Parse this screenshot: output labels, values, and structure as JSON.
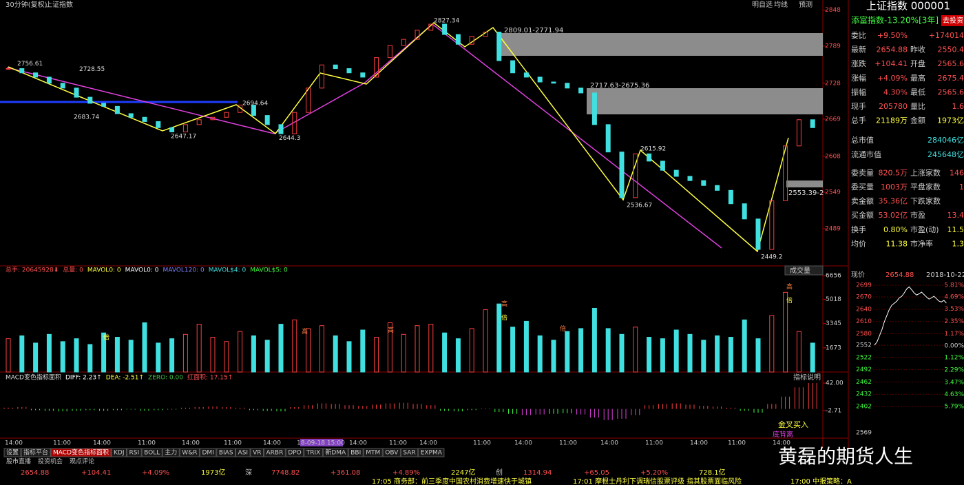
{
  "toolbar": {
    "period": "30分钟(复权)",
    "name": "上证指数",
    "buttons": [
      "明自选",
      "均线",
      "预测"
    ]
  },
  "price_chart": {
    "type": "candlestick",
    "ylim": [
      2429,
      2859
    ],
    "yticks": [
      2848,
      2789,
      2728,
      2669,
      2608,
      2549,
      2489
    ],
    "closes": [
      2752,
      2745,
      2738,
      2728,
      2720,
      2705,
      2695,
      2690,
      2678,
      2672,
      2665,
      2655,
      2648,
      2660,
      2668,
      2672,
      2680,
      2692,
      2675,
      2660,
      2645,
      2680,
      2720,
      2758,
      2752,
      2745,
      2738,
      2770,
      2790,
      2800,
      2815,
      2825,
      2808,
      2792,
      2805,
      2812,
      2765,
      2745,
      2738,
      2730,
      2728,
      2720,
      2712,
      2660,
      2615,
      2540,
      2612,
      2600,
      2585,
      2575,
      2568,
      2560,
      2552,
      2530,
      2505,
      2455,
      2535,
      2625,
      2668,
      2655
    ],
    "annotations": [
      2756.61,
      2728.55,
      2683.74,
      2647.17,
      2694.64,
      2644.3,
      2827.34,
      2615.92,
      2536.67,
      2449.2
    ],
    "zones": [
      "2809.01-2771.94",
      "2717.63-2675.36",
      "2553.39-2"
    ]
  },
  "volume_chart": {
    "type": "bar",
    "button": "成交量",
    "legend": [
      "总手: 20645928⬇",
      "总量: 0",
      "MAVOL0: 0",
      "MAVOL0: 0",
      "MAVOL120: 0",
      "MAVOL$4: 0",
      "MAVOL$5: 0"
    ],
    "ylim": [
      0,
      6800
    ],
    "yticks": [
      6656,
      5018,
      3345,
      1673
    ],
    "values": [
      2300,
      2500,
      2000,
      2600,
      2100,
      2300,
      1900,
      2700,
      2400,
      2200,
      3400,
      2000,
      2300,
      2600,
      3300,
      2400,
      2100,
      2800,
      2500,
      2200,
      3300,
      3600,
      3000,
      3200,
      2500,
      2100,
      2900,
      2400,
      3400,
      2600,
      3200,
      3300,
      2700,
      2300,
      3000,
      4300,
      4700,
      3100,
      3500,
      2500,
      2200,
      2800,
      3000,
      4400,
      3000,
      2600,
      3100,
      2400,
      2300,
      2900,
      2600,
      2200,
      2500,
      2400,
      3600,
      2300,
      3900,
      5500,
      2800,
      2000
    ],
    "marks": [
      "高",
      "倍",
      "高",
      "高",
      "倍",
      "倍",
      "高",
      "倍"
    ]
  },
  "macd_chart": {
    "type": "bar",
    "legend": [
      "MACD变色指标面积",
      "DIFF: 2.23↑",
      "DEA: -2.51↑",
      "ZERO: 0.00",
      "红面积: 17.15↑"
    ],
    "button": "指标说明",
    "signals": [
      "金叉买入",
      "底背离"
    ],
    "ylim": [
      -47.4,
      54.3
    ],
    "yticks": [
      {
        "value": 42,
        "label": "42.00"
      },
      -2.71
    ],
    "values": [
      2,
      3,
      -2,
      -3,
      -4,
      -3,
      -2,
      -3,
      -2,
      -1,
      -3,
      -2,
      -1,
      2,
      3,
      4,
      3,
      2,
      -2,
      -3,
      -4,
      3,
      6,
      9,
      8,
      6,
      5,
      7,
      9,
      10,
      8,
      6,
      -3,
      -4,
      -2,
      1,
      -5,
      -8,
      -10,
      -9,
      -8,
      -7,
      -9,
      -14,
      -18,
      -16,
      -10,
      6,
      8,
      9,
      7,
      5,
      4,
      2,
      -3,
      -6,
      8,
      20,
      35,
      42
    ]
  },
  "time_axis": [
    "14:00",
    "11:00",
    "14:00",
    "11:00",
    "14:00",
    "11:00",
    "14:00",
    "18-09-18 15:00",
    "14:00",
    "11:00",
    "14:00",
    "11:00",
    "14:00",
    "11:00",
    "14:00",
    "11:00",
    "14:00",
    "11:00",
    "14:00"
  ],
  "quote_panel": {
    "title": "上证指数 000001",
    "fund": "添富指数-13.20%[3年]",
    "invest": "去投资",
    "rows": [
      [
        "委比",
        "+9.50%",
        "",
        "+174014"
      ],
      [
        "最新",
        "2654.88",
        "昨收",
        "2550.4"
      ],
      [
        "涨跌",
        "+104.41",
        "开盘",
        "2565.6"
      ],
      [
        "涨幅",
        "+4.09%",
        "最高",
        "2675.4"
      ],
      [
        "振幅",
        "4.30%",
        "最低",
        "2565.6"
      ],
      [
        "现手",
        "205780",
        "量比",
        "1.6"
      ],
      [
        "总手",
        "21189万",
        "金额",
        "1973亿"
      ],
      [
        "总市值",
        "",
        "",
        "284046亿"
      ],
      [
        "流通市值",
        "",
        "",
        "245648亿"
      ],
      [
        "委卖量",
        "820.5万",
        "上涨家数",
        "146"
      ],
      [
        "委买量",
        "1003万",
        "平盘家数",
        "1"
      ],
      [
        "卖金额",
        "35.36亿",
        "下跌家数",
        ""
      ],
      [
        "买金额",
        "53.02亿",
        "市盈",
        "13.4"
      ],
      [
        "换手",
        "0.80%",
        "市盈(动)",
        "11.5"
      ],
      [
        "均价",
        "11.38",
        "市净率",
        "1.3"
      ]
    ]
  },
  "mini_chart": {
    "type": "line",
    "header": [
      "现价",
      "2654.88",
      "2018-10-22,-"
    ],
    "ylim": [
      2402,
      2699
    ],
    "yticks": [
      2699,
      2670,
      2640,
      2610,
      2580,
      2552,
      2522,
      2492,
      2462,
      2432,
      2402
    ],
    "pct_lim": [
      -5.79,
      5.81
    ],
    "pct_ticks": [
      {
        "value": 5.81,
        "label": "5.81%"
      },
      {
        "value": 4.69,
        "label": "4.69%"
      },
      {
        "value": 3.53,
        "label": "3.53%"
      },
      {
        "value": 2.35,
        "label": "2.35%"
      },
      {
        "value": 1.17,
        "label": "1.17%"
      },
      {
        "value": 0,
        "label": "0.00%"
      },
      {
        "value": -1.12,
        "label": "1.12%"
      },
      {
        "value": -2.29,
        "label": "2.29%"
      },
      {
        "value": -3.47,
        "label": "3.47%"
      },
      {
        "value": -4.63,
        "label": "4.63%"
      },
      {
        "value": -5.79,
        "label": "5.79%"
      }
    ],
    "vol_tick": 2569,
    "values": [
      2552,
      2560,
      2575,
      2590,
      2610,
      2625,
      2640,
      2650,
      2655,
      2660,
      2668,
      2672,
      2680,
      2690,
      2695,
      2688,
      2680,
      2675,
      2678,
      2682,
      2676,
      2670,
      2665,
      2668,
      2672,
      2666,
      2660,
      2658,
      2662,
      2655
    ]
  },
  "tabs": [
    "设置",
    "指标平台",
    "MACD变色指标面积",
    "KDJ",
    "RSI",
    "BOLL",
    "主力",
    "W&R",
    "DMI",
    "BIAS",
    "ASI",
    "VR",
    "ARBR",
    "DPO",
    "TRIX",
    "新DMA",
    "BBI",
    "MTM",
    "OBV",
    "SAR",
    "EXPMA"
  ],
  "subtabs": [
    "股市直播",
    "投资机会",
    "观点评论"
  ],
  "ticker": [
    "2654.88",
    "+104.41",
    "+4.09%",
    "1973亿",
    "深",
    "7748.82",
    "+361.08",
    "+4.89%",
    "2247亿",
    "创",
    "1314.94",
    "+65.05",
    "+5.20%",
    "728.1亿"
  ],
  "news": [
    "17:05 商务部：前三季度中国农村消费增速快于城镇",
    "17:01 摩根士丹利下调瑞信股票评级 指其股票面临风险",
    "17:00 中报策略：A"
  ],
  "watermark": "黄磊的期货人生"
}
